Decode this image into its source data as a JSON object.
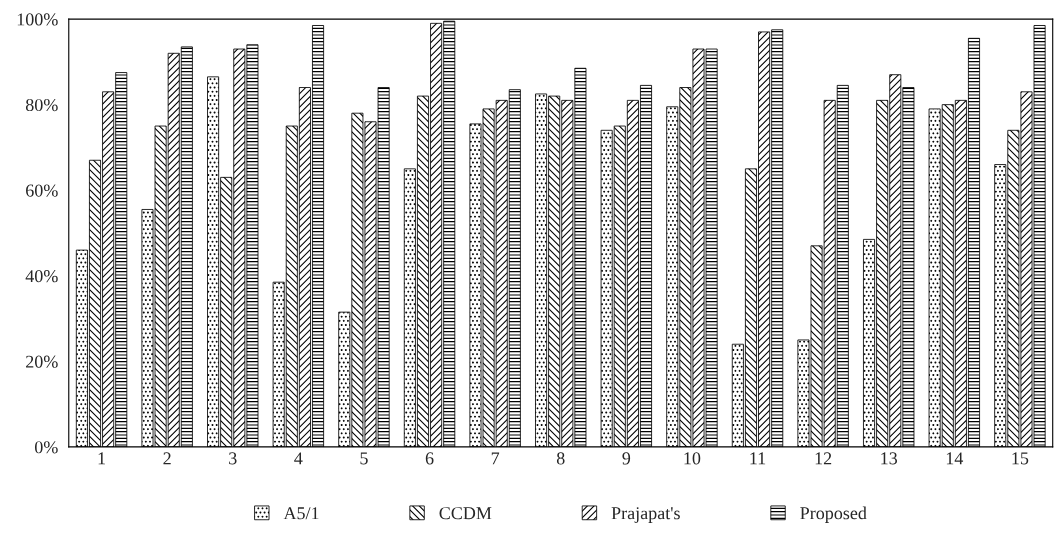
{
  "chart_data": {
    "type": "bar",
    "categories": [
      "1",
      "2",
      "3",
      "4",
      "5",
      "6",
      "7",
      "8",
      "9",
      "10",
      "11",
      "12",
      "13",
      "14",
      "15"
    ],
    "series": [
      {
        "name": "A5/1",
        "color": "#000000",
        "values": [
          46,
          55.5,
          86.5,
          38.5,
          31.5,
          65,
          75.5,
          82.5,
          74,
          79.5,
          24,
          25,
          48.5,
          79,
          66
        ]
      },
      {
        "name": "CCDM",
        "color": "#000000",
        "values": [
          67,
          75,
          63,
          75,
          78,
          82,
          79,
          82,
          75,
          84,
          65,
          47,
          81,
          80,
          74
        ]
      },
      {
        "name": "Prajapat's",
        "color": "#000000",
        "values": [
          83,
          92,
          93,
          84,
          76,
          99,
          81,
          81,
          81,
          93,
          97,
          81,
          87,
          81,
          83
        ]
      },
      {
        "name": "Proposed",
        "color": "#000000",
        "values": [
          87.5,
          93.5,
          94,
          98.5,
          84,
          99.5,
          83.5,
          88.5,
          84.5,
          93,
          97.5,
          84.5,
          84,
          95.5,
          98.5
        ]
      }
    ],
    "ylim": [
      0,
      100
    ],
    "yticks": [
      {
        "value": 0,
        "label": "0%"
      },
      {
        "value": 20,
        "label": "20%"
      },
      {
        "value": 40,
        "label": "40%"
      },
      {
        "value": 60,
        "label": "60%"
      },
      {
        "value": 80,
        "label": "80%"
      },
      {
        "value": 100,
        "label": "100%"
      }
    ],
    "grid": false,
    "legend": "bottom"
  }
}
